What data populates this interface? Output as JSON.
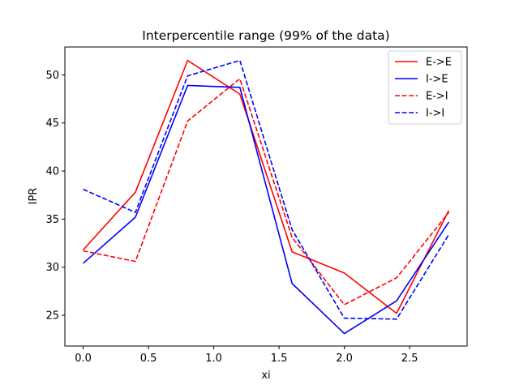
{
  "chart_data": {
    "type": "line",
    "title": "Interpercentile range (99% of the data)",
    "xlabel": "xi",
    "ylabel": "IPR",
    "xlim": [
      -0.14,
      2.94
    ],
    "ylim": [
      21.8,
      52.9
    ],
    "xticks": [
      0.0,
      0.5,
      1.0,
      1.5,
      2.0,
      2.5
    ],
    "xtick_labels": [
      "0.0",
      "0.5",
      "1.0",
      "1.5",
      "2.0",
      "2.5"
    ],
    "yticks": [
      25,
      30,
      35,
      40,
      45,
      50
    ],
    "ytick_labels": [
      "25",
      "30",
      "35",
      "40",
      "45",
      "50"
    ],
    "grid": false,
    "legend_position": "top-right",
    "x": [
      0.0,
      0.4,
      0.8,
      1.2,
      1.6,
      2.0,
      2.4,
      2.8
    ],
    "series": [
      {
        "name": "E->E",
        "color": "#ff0000",
        "dash": "solid",
        "values": [
          31.8,
          37.8,
          51.5,
          48.0,
          31.6,
          29.4,
          25.2,
          35.9
        ]
      },
      {
        "name": "I->E",
        "color": "#0000ff",
        "dash": "solid",
        "values": [
          30.4,
          35.2,
          48.9,
          48.7,
          28.3,
          23.1,
          26.5,
          34.7
        ]
      },
      {
        "name": "E->I",
        "color": "#ff0000",
        "dash": "dashed",
        "values": [
          31.7,
          30.6,
          45.2,
          49.6,
          33.1,
          26.1,
          28.9,
          35.7
        ]
      },
      {
        "name": "I->I",
        "color": "#0000ff",
        "dash": "dashed",
        "values": [
          38.1,
          35.7,
          49.9,
          51.5,
          33.9,
          24.7,
          24.6,
          33.4
        ]
      }
    ]
  }
}
